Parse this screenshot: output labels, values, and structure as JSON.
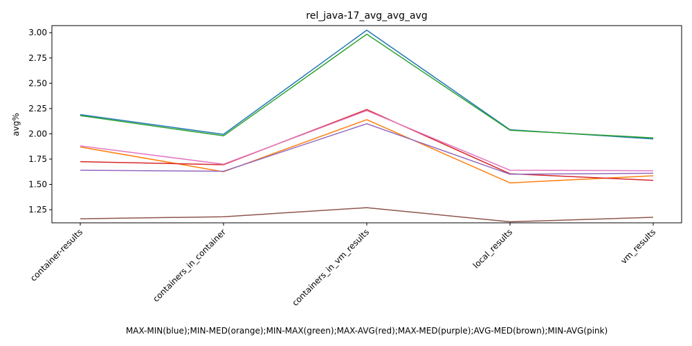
{
  "chart_data": {
    "type": "line",
    "title": "rel_java-17_avg_avg_avg",
    "ylabel": "avg%",
    "xlabel": "MAX-MIN(blue);MIN-MED(orange);MIN-MAX(green);MAX-AVG(red);MAX-MED(purple);AVG-MED(brown);MIN-AVG(pink)",
    "categories": [
      "container-results",
      "containers_in_container",
      "containers_in_vm_results",
      "local_results",
      "vm_results"
    ],
    "yticks": [
      "1.25",
      "1.50",
      "1.75",
      "2.00",
      "2.25",
      "2.50",
      "2.75",
      "3.00"
    ],
    "ylim": [
      1.12,
      3.07
    ],
    "grid": false,
    "series": [
      {
        "color": "#1f77b4",
        "values": [
          2.19,
          1.995,
          3.025,
          2.04,
          1.95
        ]
      },
      {
        "color": "#ff7f0e",
        "values": [
          1.87,
          1.625,
          2.14,
          1.515,
          1.585
        ]
      },
      {
        "color": "#2ca02c",
        "values": [
          2.18,
          1.98,
          2.985,
          2.035,
          1.96
        ]
      },
      {
        "color": "#d62728",
        "values": [
          1.725,
          1.695,
          2.24,
          1.605,
          1.54
        ]
      },
      {
        "color": "#9467bd",
        "values": [
          1.64,
          1.63,
          2.1,
          1.6,
          1.61
        ]
      },
      {
        "color": "#8c564b",
        "values": [
          1.16,
          1.18,
          1.27,
          1.13,
          1.175
        ]
      },
      {
        "color": "#e377c2",
        "values": [
          1.88,
          1.7,
          2.23,
          1.64,
          1.635
        ]
      }
    ]
  }
}
